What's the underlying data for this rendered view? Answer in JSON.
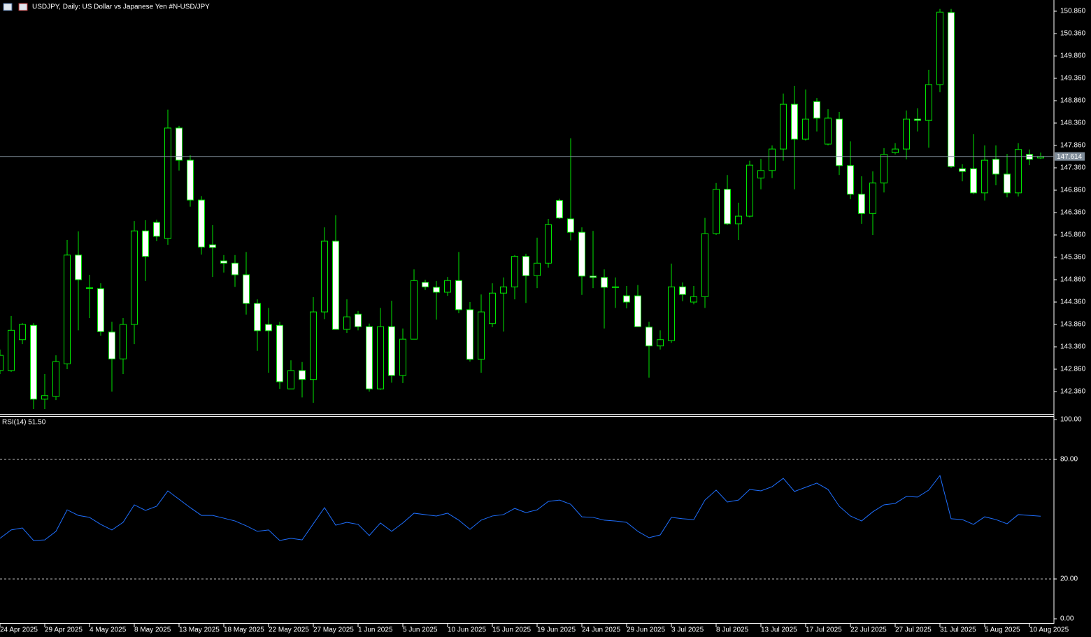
{
  "chart_data": [
    {
      "type": "candlestick",
      "title": "USDJPY, Daily:  US Dollar vs  Japanese Yen #N-USD/JPY",
      "categories": [
        "24 Apr 2025",
        null,
        null,
        null,
        "29 Apr 2025",
        null,
        null,
        null,
        "4 May 2025",
        null,
        null,
        null,
        "8 May 2025",
        null,
        null,
        null,
        "13 May 2025",
        null,
        null,
        null,
        "18 May 2025",
        null,
        null,
        null,
        "22 May 2025",
        null,
        null,
        null,
        "27 May 2025",
        null,
        null,
        null,
        "1 Jun 2025",
        null,
        null,
        null,
        "5 Jun 2025",
        null,
        null,
        null,
        "10 Jun 2025",
        null,
        null,
        null,
        "15 Jun 2025",
        null,
        null,
        null,
        "19 Jun 2025",
        null,
        null,
        null,
        "24 Jun 2025",
        null,
        null,
        null,
        "29 Jun 2025",
        null,
        null,
        null,
        "3 Jul 2025",
        null,
        null,
        null,
        "8 Jul 2025",
        null,
        null,
        null,
        "13 Jul 2025",
        null,
        null,
        null,
        "17 Jul 2025",
        null,
        null,
        null,
        "22 Jul 2025",
        null,
        null,
        null,
        "27 Jul 2025",
        null,
        null,
        null,
        "31 Jul 2025",
        null,
        null,
        null,
        "5 Aug 2025",
        null,
        null,
        null,
        "10 Aug 2025",
        null
      ],
      "open": [
        142.83,
        142.83,
        143.52,
        143.84,
        142.19,
        142.25,
        142.98,
        145.41,
        144.67,
        144.66,
        143.69,
        143.09,
        143.86,
        145.95,
        146.14,
        145.78,
        148.25,
        147.53,
        146.64,
        145.64,
        145.28,
        145.23,
        144.97,
        144.33,
        143.86,
        143.84,
        142.42,
        142.83,
        142.63,
        144.14,
        145.72,
        143.75,
        144.09,
        143.81,
        142.42,
        143.81,
        142.72,
        143.53,
        144.8,
        144.69,
        144.58,
        144.84,
        144.19,
        143.08,
        143.88,
        144.56,
        144.7,
        145.38,
        144.95,
        145.23,
        146.63,
        146.22,
        145.92,
        144.94,
        144.91,
        144.7,
        144.5,
        144.5,
        143.8,
        143.38,
        143.5,
        144.7,
        144.36,
        144.48,
        145.89,
        146.88,
        146.11,
        146.28,
        147.13,
        147.3,
        147.78,
        148.78,
        148.0,
        148.84,
        147.89,
        148.45,
        147.41,
        146.77,
        146.34,
        147.02,
        147.7,
        147.78,
        148.45,
        148.42,
        149.22,
        150.83,
        147.34,
        147.34,
        146.8,
        147.55,
        147.22,
        146.8,
        147.66,
        147.58
      ],
      "high": [
        143.3,
        144.05,
        143.89,
        143.89,
        142.75,
        143.17,
        145.75,
        145.94,
        144.97,
        144.78,
        143.92,
        144.0,
        146.17,
        146.19,
        146.2,
        148.66,
        148.3,
        147.64,
        146.73,
        146.08,
        145.41,
        145.41,
        145.48,
        144.42,
        144.23,
        143.92,
        143.06,
        143.02,
        144.47,
        146.03,
        146.3,
        144.42,
        144.16,
        143.88,
        144.23,
        144.39,
        143.77,
        145.09,
        144.86,
        144.83,
        144.92,
        145.48,
        144.36,
        144.53,
        144.78,
        144.91,
        145.41,
        145.44,
        145.8,
        146.22,
        146.67,
        148.02,
        146.03,
        145.95,
        145.09,
        144.91,
        144.72,
        144.74,
        143.92,
        143.73,
        145.22,
        144.8,
        144.72,
        146.24,
        147.02,
        147.2,
        146.58,
        147.52,
        147.56,
        147.86,
        149.02,
        149.19,
        149.11,
        148.92,
        148.67,
        148.61,
        147.95,
        147.17,
        147.28,
        147.8,
        147.91,
        148.64,
        148.69,
        149.55,
        150.91,
        150.91,
        147.44,
        148.11,
        147.86,
        147.86,
        147.67,
        147.91,
        147.77,
        147.7
      ],
      "low": [
        142.75,
        142.8,
        143.42,
        141.97,
        141.97,
        142.17,
        142.86,
        143.73,
        144.0,
        143.61,
        142.36,
        142.75,
        143.42,
        144.83,
        145.72,
        145.64,
        147.3,
        146.49,
        145.42,
        144.92,
        145.02,
        144.7,
        144.08,
        143.27,
        142.78,
        142.42,
        142.42,
        142.23,
        142.11,
        143.98,
        143.75,
        143.67,
        143.73,
        142.36,
        142.4,
        142.56,
        142.55,
        143.53,
        144.63,
        143.97,
        144.5,
        144.11,
        143.03,
        142.78,
        143.8,
        143.7,
        144.42,
        144.34,
        144.67,
        145.13,
        146.22,
        145.74,
        144.52,
        144.67,
        143.77,
        144.23,
        144.22,
        143.81,
        142.67,
        143.3,
        143.45,
        144.38,
        144.31,
        144.23,
        145.86,
        146.08,
        145.75,
        146.25,
        146.88,
        147.13,
        147.52,
        146.88,
        147.97,
        148.17,
        147.86,
        147.2,
        146.66,
        146.11,
        145.86,
        146.81,
        147.66,
        147.55,
        148.17,
        147.81,
        149.05,
        147.36,
        147.06,
        146.77,
        146.63,
        146.97,
        146.7,
        146.72,
        147.42,
        147.56
      ],
      "close": [
        143.17,
        143.73,
        143.86,
        142.19,
        142.27,
        143.03,
        145.41,
        144.86,
        144.68,
        143.7,
        143.09,
        143.86,
        145.95,
        145.38,
        145.83,
        148.25,
        147.53,
        146.64,
        145.59,
        145.58,
        145.23,
        144.97,
        144.33,
        143.72,
        143.72,
        142.58,
        142.83,
        142.63,
        144.14,
        145.72,
        143.75,
        144.03,
        143.81,
        142.42,
        143.81,
        142.72,
        143.53,
        144.84,
        144.7,
        144.58,
        144.84,
        144.19,
        143.08,
        144.14,
        144.56,
        144.7,
        145.38,
        144.95,
        145.23,
        146.09,
        146.24,
        145.92,
        144.94,
        144.91,
        144.69,
        144.69,
        144.36,
        143.81,
        143.38,
        143.52,
        144.7,
        144.53,
        144.48,
        145.89,
        146.88,
        146.11,
        146.28,
        147.42,
        147.3,
        147.78,
        148.78,
        148.0,
        148.45,
        148.47,
        148.47,
        147.41,
        146.77,
        146.34,
        147.02,
        147.66,
        147.78,
        148.45,
        148.42,
        149.22,
        150.84,
        147.39,
        147.28,
        146.8,
        147.53,
        147.22,
        146.8,
        147.77,
        147.55,
        147.614
      ],
      "bid": 147.614,
      "color": "#00e600",
      "down_fill": "#ffffff",
      "up_fill": "#000000",
      "bid_color": "#7f8c99",
      "ylim": [
        141.86,
        151.11
      ],
      "yticks": [
        {
          "value": 142.36,
          "label": "142.360"
        },
        {
          "value": 142.86,
          "label": "142.860"
        },
        {
          "value": 143.36,
          "label": "143.360"
        },
        {
          "value": 143.86,
          "label": "143.860"
        },
        {
          "value": 144.36,
          "label": "144.360"
        },
        {
          "value": 144.86,
          "label": "144.860"
        },
        {
          "value": 145.36,
          "label": "145.360"
        },
        {
          "value": 145.86,
          "label": "145.860"
        },
        {
          "value": 146.36,
          "label": "146.360"
        },
        {
          "value": 146.86,
          "label": "146.860"
        },
        {
          "value": 147.36,
          "label": "147.360"
        },
        {
          "value": 147.86,
          "label": "147.860"
        },
        {
          "value": 148.36,
          "label": "148.360"
        },
        {
          "value": 148.86,
          "label": "148.860"
        },
        {
          "value": 149.36,
          "label": "149.360"
        },
        {
          "value": 149.86,
          "label": "149.860"
        },
        {
          "value": 150.36,
          "label": "150.360"
        },
        {
          "value": 150.86,
          "label": "150.860"
        }
      ]
    },
    {
      "type": "line",
      "title": "RSI(14) 51.50",
      "color": "#1e6fff",
      "values": [
        40.4,
        44.6,
        45.6,
        39.3,
        39.6,
        43.9,
        54.7,
        51.9,
        50.9,
        47.4,
        44.6,
        48.4,
        57.2,
        54.4,
        56.5,
        64.2,
        60.0,
        55.8,
        51.9,
        51.9,
        50.5,
        49.1,
        46.7,
        43.9,
        44.6,
        39.3,
        40.4,
        39.6,
        47.7,
        55.8,
        47.0,
        48.4,
        47.4,
        41.8,
        48.1,
        43.9,
        48.1,
        53.0,
        52.3,
        51.6,
        53.0,
        49.5,
        44.9,
        49.5,
        51.6,
        52.3,
        55.4,
        53.3,
        54.7,
        58.9,
        59.6,
        57.5,
        51.2,
        50.9,
        49.5,
        49.1,
        48.4,
        43.9,
        40.7,
        42.1,
        50.9,
        50.2,
        49.8,
        59.6,
        64.6,
        58.6,
        59.6,
        64.9,
        64.2,
        66.3,
        70.5,
        63.9,
        66.0,
        68.1,
        64.9,
        56.5,
        51.6,
        49.1,
        53.7,
        57.2,
        57.9,
        61.4,
        61.1,
        64.6,
        71.9,
        50.2,
        49.8,
        47.4,
        51.2,
        49.8,
        47.7,
        52.3,
        51.9,
        51.5
      ],
      "ylim": [
        0,
        100
      ],
      "yticks": [
        {
          "value": 0,
          "label": "0.00"
        },
        {
          "value": 20,
          "label": "20.00"
        },
        {
          "value": 80,
          "label": "80.00"
        },
        {
          "value": 100,
          "label": "100.00"
        }
      ]
    }
  ]
}
